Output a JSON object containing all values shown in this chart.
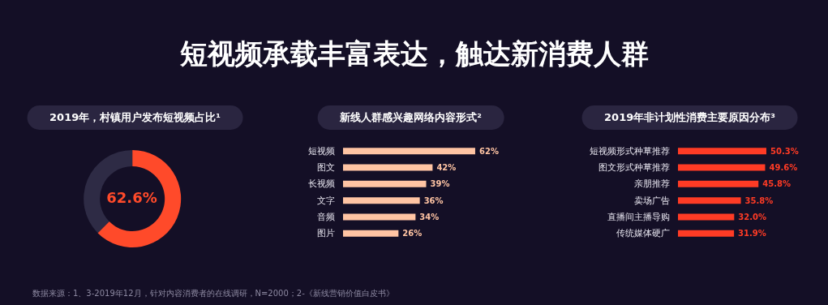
{
  "chart_data": [
    {
      "type": "donut",
      "title": "2019年，村镇用户发布短视频占比¹",
      "categories": [
        null,
        null
      ],
      "values": [
        62.6,
        37.4
      ],
      "colors": [
        "#ff4a2a",
        "#2e2b45"
      ],
      "annotations": [
        "短视频承载丰富表达，触达新消费人群",
        "62.6%",
        "数据来源：1、3-2019年12月，针对内容消费者的在线调研，N=2000；2-《新线营销价值白皮书》"
      ]
    },
    {
      "type": "bar",
      "orientation": "horizontal",
      "title": "新线人群感兴趣网络内容形式²",
      "categories": [
        "短视频",
        "图文",
        "长视频",
        "文字",
        "音频",
        "图片"
      ],
      "values": [
        62,
        42,
        39,
        36,
        34,
        26
      ],
      "color": "#ffc4a3",
      "value_labels": [
        "62%",
        "42%",
        "39%",
        "36%",
        "34%",
        "26%"
      ]
    },
    {
      "type": "bar",
      "orientation": "horizontal",
      "title": "2019年非计划性消费主要原因分布³",
      "categories": [
        "短视频形式种草推荐",
        "图文形式种草推荐",
        "亲朋推荐",
        "卖场广告",
        "直播间主播导购",
        "传统媒体硬广"
      ],
      "values": [
        50.3,
        49.6,
        45.8,
        35.8,
        32.0,
        31.9
      ],
      "color": "#ff3b25",
      "value_labels": [
        "50.3%",
        "49.6%",
        "45.8%",
        "35.8%",
        "32.0%",
        "31.9%"
      ]
    }
  ]
}
